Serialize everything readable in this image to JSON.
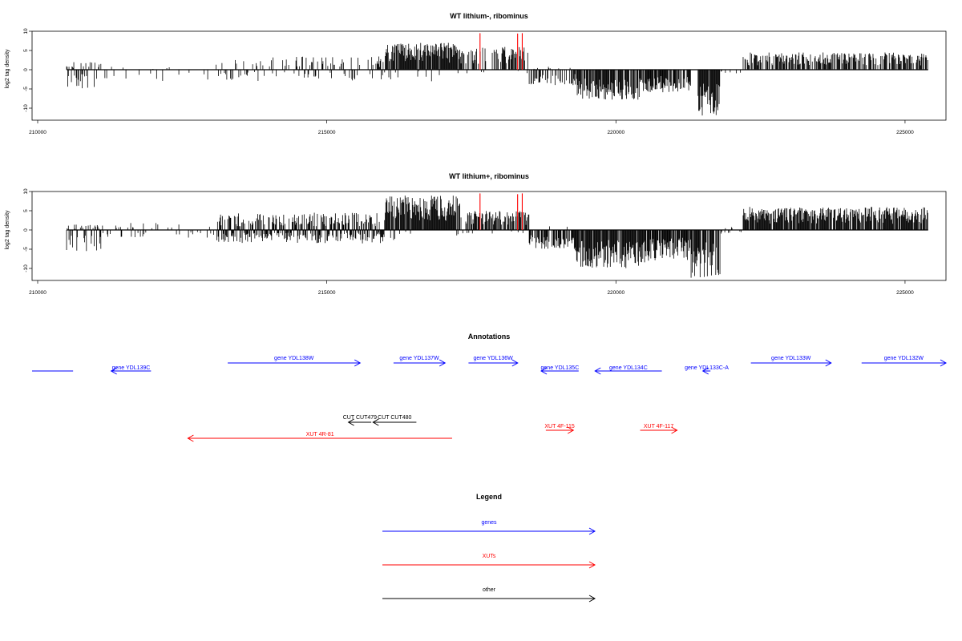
{
  "chart_data": [
    {
      "type": "bar",
      "title": "WT lithium-, ribominus",
      "ylabel": "log2 tag density",
      "xlim": [
        210000,
        225500
      ],
      "ylim": [
        -14,
        10
      ],
      "x_ticks": [
        210000,
        215000,
        220000,
        225000
      ],
      "y_ticks": [
        10,
        5,
        0,
        -5,
        -10
      ],
      "highlight_color": "#ff0000",
      "segments": [
        {
          "from": 210500,
          "to": 211100,
          "min": -5,
          "max": 2.3,
          "density": 0.5,
          "strand": "both"
        },
        {
          "from": 211100,
          "to": 213000,
          "min": -3,
          "max": 1,
          "density": 0.08,
          "strand": "both"
        },
        {
          "from": 213000,
          "to": 216000,
          "min": -3,
          "max": 3.5,
          "density": 0.35,
          "strand": "both"
        },
        {
          "from": 216000,
          "to": 217300,
          "min": -3,
          "max": 7,
          "density": 1.0,
          "strand": "plus"
        },
        {
          "from": 217300,
          "to": 218500,
          "min": -1,
          "max": 6,
          "density": 0.6,
          "strand": "plus"
        },
        {
          "from": 218500,
          "to": 219300,
          "min": -4,
          "max": 1,
          "density": 0.6,
          "strand": "minus"
        },
        {
          "from": 219300,
          "to": 220500,
          "min": -8,
          "max": 0,
          "density": 0.9,
          "strand": "minus"
        },
        {
          "from": 220500,
          "to": 221300,
          "min": -6,
          "max": 0,
          "density": 0.9,
          "strand": "minus"
        },
        {
          "from": 221400,
          "to": 221800,
          "min": -12,
          "max": 0,
          "density": 1.0,
          "strand": "minus"
        },
        {
          "from": 221800,
          "to": 222200,
          "min": -1,
          "max": 0,
          "density": 0.2,
          "strand": "minus"
        },
        {
          "from": 222200,
          "to": 225400,
          "min": 0,
          "max": 4.5,
          "density": 0.75,
          "strand": "plus"
        }
      ],
      "peaks": [
        {
          "x": 217650,
          "y": 9.5
        },
        {
          "x": 218300,
          "y": 9.4
        },
        {
          "x": 218380,
          "y": 9.5
        }
      ]
    },
    {
      "type": "bar",
      "title": "WT lithium+, ribominus",
      "ylabel": "log2 tag density",
      "xlim": [
        210000,
        225500
      ],
      "ylim": [
        -14,
        10
      ],
      "x_ticks": [
        210000,
        215000,
        220000,
        225000
      ],
      "y_ticks": [
        10,
        5,
        0,
        -5,
        -10
      ],
      "highlight_color": "#ff0000",
      "segments": [
        {
          "from": 210500,
          "to": 211100,
          "min": -5.5,
          "max": 1.5,
          "density": 0.6,
          "strand": "both"
        },
        {
          "from": 211100,
          "to": 213100,
          "min": -2,
          "max": 2,
          "density": 0.2,
          "strand": "both"
        },
        {
          "from": 213100,
          "to": 216000,
          "min": -3.5,
          "max": 4.5,
          "density": 1.0,
          "strand": "both"
        },
        {
          "from": 216000,
          "to": 217300,
          "min": -3,
          "max": 9,
          "density": 1.0,
          "strand": "plus"
        },
        {
          "from": 217300,
          "to": 218500,
          "min": -1,
          "max": 5,
          "density": 0.7,
          "strand": "plus"
        },
        {
          "from": 218500,
          "to": 219300,
          "min": -5,
          "max": 1,
          "density": 0.7,
          "strand": "minus"
        },
        {
          "from": 219300,
          "to": 220500,
          "min": -10,
          "max": 0,
          "density": 1.0,
          "strand": "minus"
        },
        {
          "from": 220500,
          "to": 221300,
          "min": -8,
          "max": 0,
          "density": 1.0,
          "strand": "minus"
        },
        {
          "from": 221300,
          "to": 221800,
          "min": -12.5,
          "max": 0,
          "density": 1.0,
          "strand": "minus"
        },
        {
          "from": 221800,
          "to": 222200,
          "min": -1,
          "max": 1,
          "density": 0.3,
          "strand": "both"
        },
        {
          "from": 222200,
          "to": 225400,
          "min": 0,
          "max": 6,
          "density": 1.0,
          "strand": "plus"
        }
      ],
      "peaks": [
        {
          "x": 217650,
          "y": 9.5
        },
        {
          "x": 218300,
          "y": 9.3
        },
        {
          "x": 218380,
          "y": 9.5
        }
      ]
    }
  ],
  "annotations": {
    "title": "Annotations",
    "features": [
      {
        "label": "",
        "start": 210000,
        "end": 210700,
        "dir": "none",
        "type": "gene",
        "row": 1
      },
      {
        "label": "gene YDL139C",
        "start": 211350,
        "end": 212030,
        "dir": "left",
        "type": "gene",
        "row": 1
      },
      {
        "label": "gene YDL138W",
        "start": 213340,
        "end": 215600,
        "dir": "right",
        "type": "gene",
        "row": 0
      },
      {
        "label": "gene YDL137W",
        "start": 216170,
        "end": 217050,
        "dir": "right",
        "type": "gene",
        "row": 0
      },
      {
        "label": "gene YDL136W",
        "start": 217450,
        "end": 218290,
        "dir": "right",
        "type": "gene",
        "row": 0
      },
      {
        "label": "gene YDL135C",
        "start": 218690,
        "end": 219330,
        "dir": "left",
        "type": "gene",
        "row": 1
      },
      {
        "label": "gene YDL134C",
        "start": 219610,
        "end": 220750,
        "dir": "left",
        "type": "gene",
        "row": 1
      },
      {
        "label": "gene YDL133C-A",
        "start": 221450,
        "end": 221580,
        "dir": "left",
        "type": "gene",
        "row": 1
      },
      {
        "label": "gene YDL133W",
        "start": 222270,
        "end": 223640,
        "dir": "right",
        "type": "gene",
        "row": 0
      },
      {
        "label": "gene YDL132W",
        "start": 224160,
        "end": 225600,
        "dir": "right",
        "type": "gene",
        "row": 0
      },
      {
        "label": "CUT CUT479",
        "start": 215400,
        "end": 215790,
        "dir": "left",
        "type": "other",
        "row": 2
      },
      {
        "label": "CUT CUT480",
        "start": 215820,
        "end": 216560,
        "dir": "left",
        "type": "other",
        "row": 2
      },
      {
        "label": "XUT 4R-81",
        "start": 212660,
        "end": 217170,
        "dir": "left",
        "type": "xut",
        "row": 4
      },
      {
        "label": "XUT 4F-115",
        "start": 218770,
        "end": 219240,
        "dir": "right",
        "type": "xut",
        "row": 3
      },
      {
        "label": "XUT 4F-117",
        "start": 220380,
        "end": 221010,
        "dir": "right",
        "type": "xut",
        "row": 3
      }
    ]
  },
  "legend": {
    "title": "Legend",
    "items": [
      {
        "label": "genes",
        "color": "#0000ff"
      },
      {
        "label": "XUTs",
        "color": "#ff0000"
      },
      {
        "label": "other",
        "color": "#000000"
      }
    ]
  }
}
